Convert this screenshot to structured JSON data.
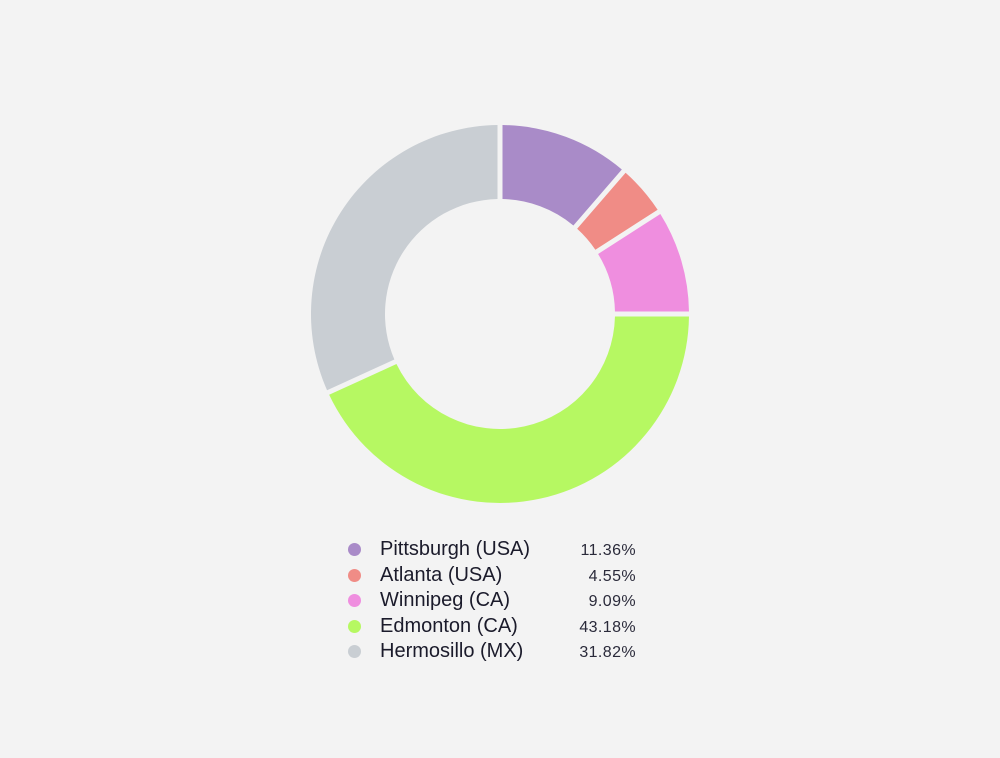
{
  "chart_data": {
    "type": "pie",
    "variant": "donut",
    "slices": [
      {
        "label": "Pittsburgh (USA)",
        "value": 11.36,
        "value_label": "11.36%",
        "color": "#a98bc8"
      },
      {
        "label": "Atlanta (USA)",
        "value": 4.55,
        "value_label": "4.55%",
        "color": "#f08c86"
      },
      {
        "label": "Winnipeg (CA)",
        "value": 9.09,
        "value_label": "9.09%",
        "color": "#ef8edf"
      },
      {
        "label": "Edmonton (CA)",
        "value": 43.18,
        "value_label": "43.18%",
        "color": "#b6f862"
      },
      {
        "label": "Hermosillo (MX)",
        "value": 31.82,
        "value_label": "31.82%",
        "color": "#c9ced3"
      }
    ],
    "legend_position": "bottom",
    "start_angle": "12 o'clock",
    "direction": "clockwise"
  }
}
